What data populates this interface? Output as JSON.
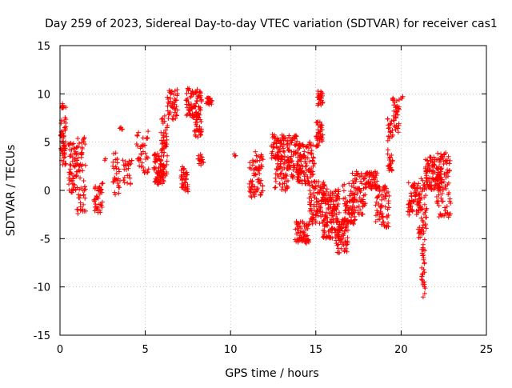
{
  "chart_data": {
    "type": "scatter",
    "title": "Day 259 of 2023, Sidereal Day-to-day VTEC variation (SDTVAR) for receiver cas1",
    "xlabel": "GPS time / hours",
    "ylabel": "SDTVAR / TECUs",
    "xlim": [
      0,
      25
    ],
    "ylim": [
      -15,
      15
    ],
    "xticks": [
      "0",
      "5",
      "10",
      "15",
      "20",
      "25"
    ],
    "yticks": [
      "15",
      "10",
      "5",
      "0",
      "-5",
      "-10",
      "-15"
    ],
    "grid": true,
    "marker": "+",
    "series": [
      {
        "name": "SDTVAR",
        "color": "#ff0000",
        "clusters": [
          {
            "x0": 0.05,
            "x1": 0.35,
            "ymin": 2.5,
            "ymax": 9.0,
            "n": 60
          },
          {
            "x0": 0.5,
            "x1": 1.0,
            "ymin": -0.5,
            "ymax": 5.0,
            "n": 60
          },
          {
            "x0": 1.0,
            "x1": 1.5,
            "ymin": -2.5,
            "ymax": 5.5,
            "n": 60
          },
          {
            "x0": 2.0,
            "x1": 2.5,
            "ymin": -2.3,
            "ymax": 0.8,
            "n": 40
          },
          {
            "x0": 2.6,
            "x1": 2.65,
            "ymin": 3.1,
            "ymax": 3.3,
            "n": 2
          },
          {
            "x0": 3.1,
            "x1": 3.5,
            "ymin": -0.6,
            "ymax": 4.0,
            "n": 30
          },
          {
            "x0": 3.5,
            "x1": 3.65,
            "ymin": 6.3,
            "ymax": 6.6,
            "n": 5
          },
          {
            "x0": 3.7,
            "x1": 4.2,
            "ymin": 0.5,
            "ymax": 3.2,
            "n": 25
          },
          {
            "x0": 4.5,
            "x1": 5.2,
            "ymin": 1.8,
            "ymax": 6.2,
            "n": 40
          },
          {
            "x0": 5.5,
            "x1": 6.1,
            "ymin": 0.6,
            "ymax": 4.0,
            "n": 70
          },
          {
            "x0": 5.9,
            "x1": 6.3,
            "ymin": 1.5,
            "ymax": 7.8,
            "n": 50
          },
          {
            "x0": 6.3,
            "x1": 6.9,
            "ymin": 7.3,
            "ymax": 10.5,
            "n": 45
          },
          {
            "x0": 7.1,
            "x1": 7.5,
            "ymin": -0.2,
            "ymax": 2.5,
            "n": 40
          },
          {
            "x0": 7.4,
            "x1": 8.3,
            "ymin": 7.5,
            "ymax": 10.6,
            "n": 80
          },
          {
            "x0": 7.9,
            "x1": 8.3,
            "ymin": 5.5,
            "ymax": 8.0,
            "n": 30
          },
          {
            "x0": 8.1,
            "x1": 8.4,
            "ymin": 2.5,
            "ymax": 3.8,
            "n": 15
          },
          {
            "x0": 8.6,
            "x1": 8.9,
            "ymin": 8.8,
            "ymax": 9.6,
            "n": 20
          },
          {
            "x0": 10.2,
            "x1": 10.3,
            "ymin": 3.4,
            "ymax": 3.8,
            "n": 3
          },
          {
            "x0": 11.1,
            "x1": 11.9,
            "ymin": -0.8,
            "ymax": 4.0,
            "n": 70
          },
          {
            "x0": 12.4,
            "x1": 13.2,
            "ymin": 3.0,
            "ymax": 5.8,
            "n": 60
          },
          {
            "x0": 12.6,
            "x1": 13.4,
            "ymin": -0.1,
            "ymax": 3.5,
            "n": 60
          },
          {
            "x0": 13.3,
            "x1": 14.1,
            "ymin": 0.8,
            "ymax": 5.7,
            "n": 80
          },
          {
            "x0": 13.8,
            "x1": 14.6,
            "ymin": -5.5,
            "ymax": -3.2,
            "n": 60
          },
          {
            "x0": 13.9,
            "x1": 14.9,
            "ymin": 0.6,
            "ymax": 5.0,
            "n": 100
          },
          {
            "x0": 14.6,
            "x1": 15.5,
            "ymin": -3.5,
            "ymax": 1.0,
            "n": 90
          },
          {
            "x0": 15.0,
            "x1": 15.4,
            "ymin": 4.5,
            "ymax": 7.2,
            "n": 40
          },
          {
            "x0": 15.1,
            "x1": 15.4,
            "ymin": 8.8,
            "ymax": 10.3,
            "n": 30
          },
          {
            "x0": 15.4,
            "x1": 16.4,
            "ymin": -5.0,
            "ymax": 0.2,
            "n": 140
          },
          {
            "x0": 16.2,
            "x1": 16.9,
            "ymin": -6.6,
            "ymax": -3.0,
            "n": 70
          },
          {
            "x0": 16.6,
            "x1": 17.3,
            "ymin": -3.5,
            "ymax": 0.8,
            "n": 60
          },
          {
            "x0": 17.1,
            "x1": 17.9,
            "ymin": -2.5,
            "ymax": 2.0,
            "n": 70
          },
          {
            "x0": 17.9,
            "x1": 18.6,
            "ymin": 0.0,
            "ymax": 2.0,
            "n": 50
          },
          {
            "x0": 18.5,
            "x1": 19.3,
            "ymin": -3.9,
            "ymax": 0.5,
            "n": 70
          },
          {
            "x0": 19.2,
            "x1": 19.5,
            "ymin": 2.0,
            "ymax": 7.8,
            "n": 40
          },
          {
            "x0": 19.5,
            "x1": 19.9,
            "ymin": 6.0,
            "ymax": 9.6,
            "n": 35
          },
          {
            "x0": 20.0,
            "x1": 20.1,
            "ymin": 9.5,
            "ymax": 9.8,
            "n": 3
          },
          {
            "x0": 20.4,
            "x1": 21.1,
            "ymin": -2.6,
            "ymax": 1.0,
            "n": 60
          },
          {
            "x0": 21.0,
            "x1": 21.5,
            "ymin": -5.2,
            "ymax": 1.3,
            "n": 50
          },
          {
            "x0": 21.2,
            "x1": 21.4,
            "ymin": -11.2,
            "ymax": -5.5,
            "n": 30
          },
          {
            "x0": 21.4,
            "x1": 22.4,
            "ymin": 0.0,
            "ymax": 3.5,
            "n": 110
          },
          {
            "x0": 22.1,
            "x1": 22.9,
            "ymin": -2.8,
            "ymax": 4.2,
            "n": 80
          }
        ]
      }
    ]
  }
}
